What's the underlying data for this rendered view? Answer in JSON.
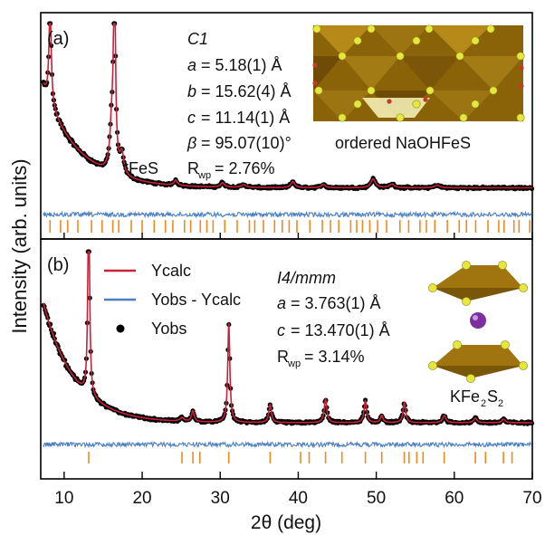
{
  "figure": {
    "ylabel": "Intensity (arb. units)",
    "xlabel": "2θ (deg)",
    "xticks": [
      "10",
      "20",
      "30",
      "40",
      "50",
      "60",
      "70"
    ]
  },
  "colors": {
    "ycalc": "#c8223a",
    "diff": "#4a7fc1",
    "obs": "#000000",
    "ticks": "#ef8a22",
    "fe_polyhedra": "#a07510",
    "sulfur": "#e6e63c",
    "oxygen": "#c43a2a",
    "potassium": "#7b2fa0"
  },
  "panel_a": {
    "label": "(a)",
    "space_group": "C1",
    "params": {
      "a": {
        "sym": "a",
        "val": "= 5.18(1) Å"
      },
      "b": {
        "sym": "b",
        "val": "= 15.62(4) Å"
      },
      "c": {
        "sym": "c",
        "val": "= 11.14(1) Å"
      },
      "beta": {
        "sym": "β",
        "val": "= 95.07(10)°"
      },
      "rwp": {
        "sym": "R",
        "sub": "wp",
        "val": "= 2.76%"
      }
    },
    "impurity": "*FeS",
    "structure_label": "ordered NaOHFeS"
  },
  "panel_b": {
    "label": "(b)",
    "space_group": "I4/mmm",
    "params": {
      "a": {
        "sym": "a",
        "val": "= 3.763(1) Å"
      },
      "c": {
        "sym": "c",
        "val": "= 13.470(1) Å"
      },
      "rwp": {
        "sym": "R",
        "sub": "wp",
        "val": "= 3.14%"
      }
    },
    "legend": {
      "ycalc": "Ycalc",
      "diff": "Yobs - Ycalc",
      "obs": "Yobs"
    },
    "structure_label": {
      "main": "KFe",
      "sub1": "2",
      "mid": "S",
      "sub2": "2"
    }
  },
  "chart_data": [
    {
      "type": "line",
      "panel": "a",
      "xlim": [
        7,
        70
      ],
      "background": {
        "start": 0.62,
        "decay": 0.22,
        "base": 0.085
      },
      "peaks": [
        {
          "x": 8.2,
          "h": 0.55,
          "w": 0.18
        },
        {
          "x": 16.1,
          "h": 0.24,
          "w": 0.28
        },
        {
          "x": 16.45,
          "h": 1.08,
          "w": 0.16
        },
        {
          "x": 17.4,
          "h": 0.12,
          "w": 0.3
        },
        {
          "x": 24.3,
          "h": 0.03,
          "w": 0.25
        },
        {
          "x": 30.3,
          "h": 0.025,
          "w": 0.3
        },
        {
          "x": 33.0,
          "h": 0.015,
          "w": 0.4
        },
        {
          "x": 39.3,
          "h": 0.035,
          "w": 0.3
        },
        {
          "x": 43.2,
          "h": 0.02,
          "w": 0.3
        },
        {
          "x": 49.6,
          "h": 0.05,
          "w": 0.35
        },
        {
          "x": 52.0,
          "h": 0.02,
          "w": 0.4
        },
        {
          "x": 57.8,
          "h": 0.015,
          "w": 0.4
        }
      ]
    },
    {
      "type": "line",
      "panel": "b",
      "xlim": [
        7,
        70
      ],
      "background": {
        "start": 0.72,
        "decay": 0.25,
        "base": 0.075
      },
      "peaks": [
        {
          "x": 13.15,
          "h": 1.2,
          "w": 0.13
        },
        {
          "x": 25.1,
          "h": 0.02,
          "w": 0.3
        },
        {
          "x": 26.5,
          "h": 0.06,
          "w": 0.2
        },
        {
          "x": 31.1,
          "h": 0.55,
          "w": 0.16
        },
        {
          "x": 36.4,
          "h": 0.1,
          "w": 0.2
        },
        {
          "x": 43.5,
          "h": 0.13,
          "w": 0.2
        },
        {
          "x": 48.6,
          "h": 0.12,
          "w": 0.2
        },
        {
          "x": 50.7,
          "h": 0.04,
          "w": 0.2
        },
        {
          "x": 53.6,
          "h": 0.11,
          "w": 0.2
        },
        {
          "x": 58.7,
          "h": 0.04,
          "w": 0.25
        },
        {
          "x": 62.7,
          "h": 0.025,
          "w": 0.25
        },
        {
          "x": 66.3,
          "h": 0.02,
          "w": 0.25
        }
      ],
      "reflections": [
        13.15,
        25.1,
        26.5,
        27.4,
        31.1,
        36.4,
        40.3,
        41.4,
        43.5,
        45.6,
        48.6,
        50.7,
        53.6,
        54.2,
        55.2,
        56.0,
        58.7,
        62.7,
        64.0,
        66.3,
        67.4
      ]
    }
  ]
}
